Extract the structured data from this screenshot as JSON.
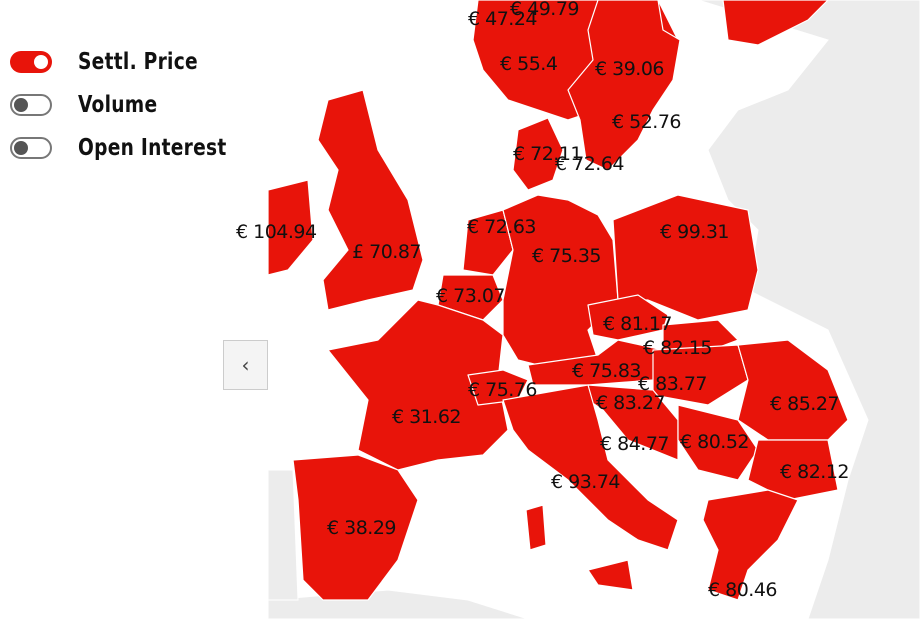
{
  "legend": {
    "items": [
      {
        "label": "Settl. Price",
        "enabled": true
      },
      {
        "label": "Volume",
        "enabled": false
      },
      {
        "label": "Open Interest",
        "enabled": false
      }
    ]
  },
  "navigation": {
    "prev_icon": "chevron-left-icon",
    "prev_glyph": "‹"
  },
  "map": {
    "colors": {
      "price_fill": "#e8140a",
      "other_land": "#ececec",
      "sea": "#ffffff",
      "border": "#ffffff"
    },
    "prices": [
      {
        "area": "NO-1",
        "value": "€ 47.24"
      },
      {
        "area": "NO-2",
        "value": "€ 49.79"
      },
      {
        "area": "NO-3",
        "value": "€ 55.4"
      },
      {
        "area": "SE-3",
        "value": "€ 39.06"
      },
      {
        "area": "SE-4",
        "value": "€ 52.76"
      },
      {
        "area": "DK-1",
        "value": "€ 72.11"
      },
      {
        "area": "DK-2",
        "value": "€ 72.64"
      },
      {
        "area": "IE",
        "value": "€ 104.94"
      },
      {
        "area": "NL",
        "value": "€ 72.63"
      },
      {
        "area": "DE",
        "value": "€ 75.35"
      },
      {
        "area": "PL",
        "value": "€ 99.31"
      },
      {
        "area": "GB",
        "value": "£ 70.87"
      },
      {
        "area": "BE",
        "value": "€ 73.07"
      },
      {
        "area": "CZ",
        "value": "€ 81.17"
      },
      {
        "area": "SK",
        "value": "€ 82.15"
      },
      {
        "area": "AT",
        "value": "€ 75.83"
      },
      {
        "area": "HU",
        "value": "€ 83.77"
      },
      {
        "area": "CH",
        "value": "€ 75.76"
      },
      {
        "area": "FR",
        "value": "€ 31.62"
      },
      {
        "area": "SI",
        "value": "€ 83.27"
      },
      {
        "area": "RO",
        "value": "€ 85.27"
      },
      {
        "area": "HR",
        "value": "€ 84.77"
      },
      {
        "area": "RS",
        "value": "€ 80.52"
      },
      {
        "area": "BG",
        "value": "€ 82.12"
      },
      {
        "area": "IT",
        "value": "€ 93.74"
      },
      {
        "area": "ES",
        "value": "€ 38.29"
      },
      {
        "area": "GR",
        "value": "€ 80.46"
      }
    ]
  }
}
